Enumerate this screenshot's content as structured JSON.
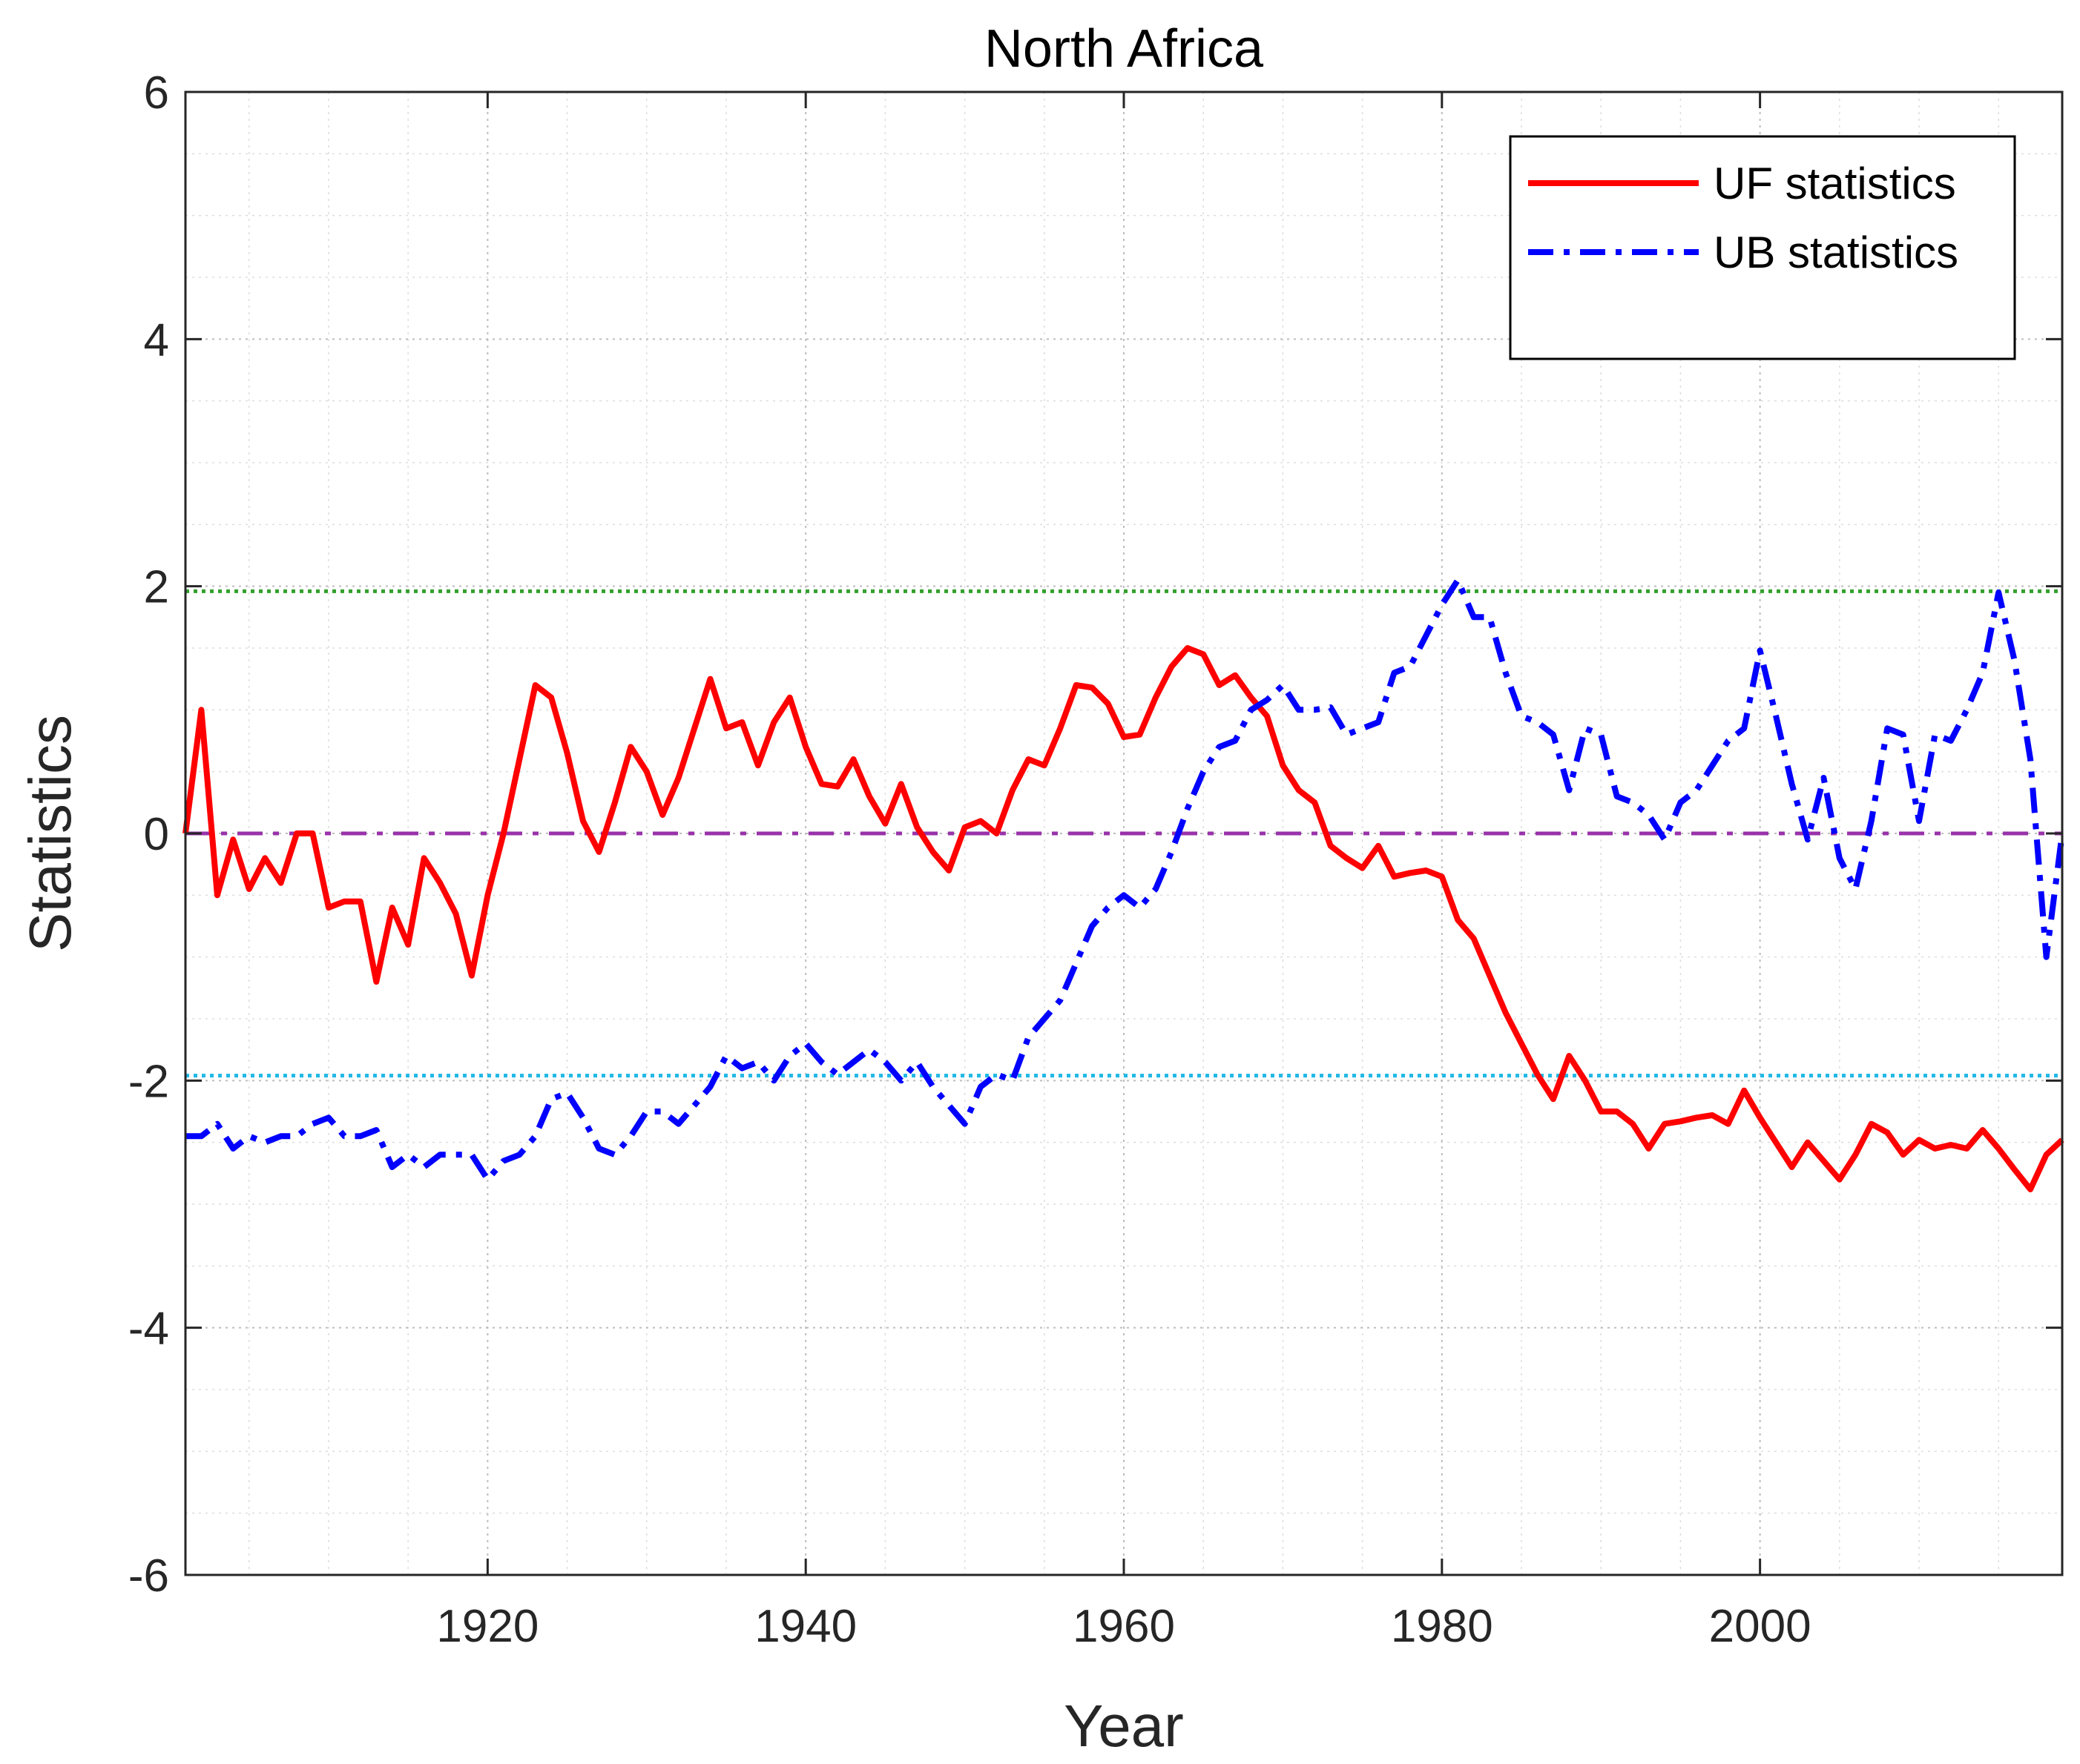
{
  "chart_data": {
    "type": "line",
    "title": "North Africa",
    "xlabel": "Year",
    "ylabel": "Statistics",
    "xlim": [
      1901,
      2019
    ],
    "ylim": [
      -6,
      6
    ],
    "xticks": [
      1920,
      1940,
      1960,
      1980,
      2000
    ],
    "xtick_labels": [
      "1920",
      "1940",
      "1960",
      "1980",
      "2000"
    ],
    "yticks": [
      -6,
      -4,
      -2,
      0,
      2,
      4,
      6
    ],
    "ytick_labels": [
      "-6",
      "-4",
      "-2",
      "0",
      "2",
      "4",
      "6"
    ],
    "grid": true,
    "minor_grid": true,
    "legend_position": "top-right",
    "x_start": 1901,
    "x_step": 1,
    "series": [
      {
        "name": "UF statistics",
        "color": "#ff0000",
        "style": "solid",
        "values": [
          0.0,
          1.0,
          -0.5,
          -0.05,
          -0.45,
          -0.2,
          -0.4,
          0.0,
          0.0,
          -0.6,
          -0.55,
          -0.55,
          -1.2,
          -0.6,
          -0.9,
          -0.2,
          -0.4,
          -0.65,
          -1.15,
          -0.5,
          0.0,
          0.6,
          1.2,
          1.1,
          0.65,
          0.1,
          -0.15,
          0.25,
          0.7,
          0.5,
          0.15,
          0.45,
          0.85,
          1.25,
          0.85,
          0.9,
          0.55,
          0.9,
          1.1,
          0.7,
          0.4,
          0.38,
          0.6,
          0.3,
          0.08,
          0.4,
          0.05,
          -0.15,
          -0.3,
          0.05,
          0.1,
          0.0,
          0.35,
          0.6,
          0.55,
          0.85,
          1.2,
          1.18,
          1.05,
          0.78,
          0.8,
          1.1,
          1.35,
          1.5,
          1.45,
          1.2,
          1.28,
          1.1,
          0.95,
          0.55,
          0.35,
          0.25,
          -0.1,
          -0.2,
          -0.28,
          -0.1,
          -0.35,
          -0.32,
          -0.3,
          -0.35,
          -0.7,
          -0.85,
          -1.15,
          -1.45,
          -1.7,
          -1.95,
          -2.15,
          -1.8,
          -2.0,
          -2.25,
          -2.25,
          -2.35,
          -2.55,
          -2.35,
          -2.33,
          -2.3,
          -2.28,
          -2.35,
          -2.08,
          -2.3,
          -2.5,
          -2.7,
          -2.5,
          -2.65,
          -2.8,
          -2.6,
          -2.35,
          -2.42,
          -2.6,
          -2.48,
          -2.55,
          -2.52,
          -2.55,
          -2.4,
          -2.55,
          -2.72,
          -2.88,
          -2.6,
          -2.48
        ]
      },
      {
        "name": "UB statistics",
        "color": "#0000ff",
        "style": "dashdot",
        "values": [
          -2.45,
          -2.45,
          -2.35,
          -2.55,
          -2.45,
          -2.5,
          -2.45,
          -2.45,
          -2.35,
          -2.3,
          -2.45,
          -2.45,
          -2.4,
          -2.7,
          -2.6,
          -2.7,
          -2.6,
          -2.6,
          -2.6,
          -2.8,
          -2.65,
          -2.6,
          -2.45,
          -2.15,
          -2.1,
          -2.3,
          -2.55,
          -2.6,
          -2.45,
          -2.25,
          -2.25,
          -2.35,
          -2.2,
          -2.05,
          -1.8,
          -1.9,
          -1.85,
          -2.0,
          -1.8,
          -1.7,
          -1.85,
          -1.95,
          -1.85,
          -1.75,
          -1.85,
          -2.0,
          -1.85,
          -2.05,
          -2.2,
          -2.35,
          -2.05,
          -1.95,
          -2.0,
          -1.65,
          -1.5,
          -1.35,
          -1.05,
          -0.75,
          -0.6,
          -0.5,
          -0.6,
          -0.45,
          -0.15,
          0.2,
          0.5,
          0.7,
          0.75,
          1.0,
          1.08,
          1.2,
          1.0,
          1.0,
          1.02,
          0.8,
          0.85,
          0.9,
          1.3,
          1.35,
          1.6,
          1.85,
          2.05,
          1.75,
          1.75,
          1.3,
          0.95,
          0.9,
          0.8,
          0.35,
          0.85,
          0.8,
          0.3,
          0.25,
          0.15,
          -0.05,
          0.25,
          0.35,
          0.55,
          0.75,
          0.85,
          1.48,
          0.95,
          0.4,
          -0.05,
          0.45,
          -0.2,
          -0.45,
          0.1,
          0.85,
          0.8,
          0.1,
          0.8,
          0.75,
          1.0,
          1.3,
          1.95,
          1.4,
          0.6,
          -1.0,
          0.0
        ]
      }
    ],
    "reference_lines": [
      {
        "name": "upper-95-confidence",
        "value": 1.96,
        "color": "#33a02c",
        "style": "dotted"
      },
      {
        "name": "zero-line",
        "value": 0,
        "color": "#9933aa",
        "style": "dashdot"
      },
      {
        "name": "lower-95-confidence",
        "value": -1.96,
        "color": "#1fb8e6",
        "style": "dotted"
      }
    ]
  }
}
